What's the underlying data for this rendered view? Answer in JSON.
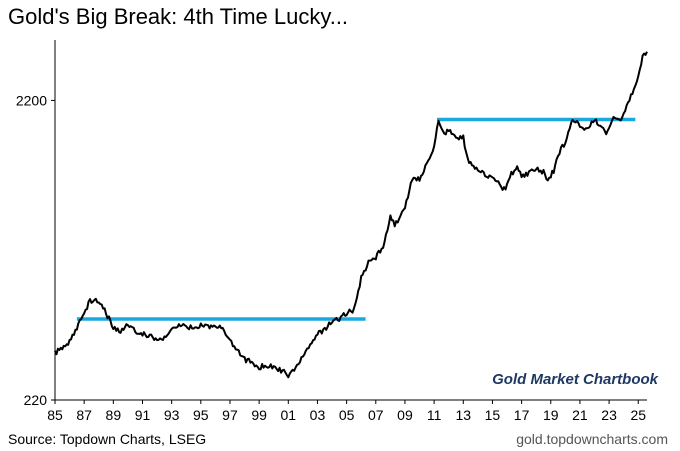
{
  "title": "Gold's Big Break: 4th Time Lucky...",
  "source": "Source: Topdown Charts, LSEG",
  "site": "gold.topdowncharts.com",
  "watermark": "Gold Market Chartbook",
  "colors": {
    "line": "#000000",
    "resistance": "#1aa8e0",
    "watermark": "#1f3864"
  },
  "chart_data": {
    "type": "line",
    "title": "Gold's Big Break: 4th Time Lucky...",
    "xlabel": "",
    "ylabel": "",
    "yscale": "log",
    "ylim": [
      220,
      3500
    ],
    "xlim": [
      1985,
      2025.6
    ],
    "x_tick_labels": [
      "85",
      "87",
      "89",
      "91",
      "93",
      "95",
      "97",
      "99",
      "01",
      "03",
      "05",
      "07",
      "09",
      "11",
      "13",
      "15",
      "17",
      "19",
      "21",
      "23",
      "25"
    ],
    "y_ticks": [
      220,
      2200
    ],
    "y_tick_labels": [
      "220",
      "2200"
    ],
    "grid": false,
    "legend": "none",
    "series": [
      {
        "x": [
          1985.0,
          1985.5,
          1986.0,
          1986.5,
          1987.0,
          1987.4,
          1987.8,
          1988.2,
          1988.6,
          1989.0,
          1989.5,
          1990.0,
          1990.5,
          1991.0,
          1991.5,
          1992.0,
          1992.5,
          1993.0,
          1993.5,
          1994.0,
          1994.5,
          1995.0,
          1995.5,
          1996.0,
          1996.5,
          1997.0,
          1997.5,
          1998.0,
          1998.5,
          1999.0,
          1999.4,
          1999.8,
          2000.2,
          2000.6,
          2001.0,
          2001.5,
          2002.0,
          2002.5,
          2003.0,
          2003.5,
          2004.0,
          2004.5,
          2005.0,
          2005.5,
          2006.0,
          2006.5,
          2007.0,
          2007.5,
          2008.0,
          2008.3,
          2008.7,
          2009.0,
          2009.5,
          2010.0,
          2010.5,
          2011.0,
          2011.3,
          2011.7,
          2012.0,
          2012.5,
          2013.0,
          2013.3,
          2013.7,
          2014.0,
          2014.5,
          2015.0,
          2015.5,
          2015.9,
          2016.3,
          2016.7,
          2017.0,
          2017.5,
          2018.0,
          2018.5,
          2018.8,
          2019.2,
          2019.6,
          2020.0,
          2020.3,
          2020.6,
          2021.0,
          2021.5,
          2022.0,
          2022.5,
          2022.8,
          2023.2,
          2023.6,
          2023.9,
          2024.2,
          2024.6,
          2025.0,
          2025.3,
          2025.6
        ],
        "values": [
          315,
          330,
          345,
          380,
          430,
          470,
          475,
          455,
          420,
          385,
          375,
          395,
          375,
          365,
          360,
          350,
          355,
          385,
          395,
          385,
          385,
          390,
          385,
          390,
          380,
          345,
          325,
          300,
          295,
          280,
          290,
          285,
          280,
          275,
          265,
          280,
          310,
          340,
          365,
          380,
          400,
          410,
          430,
          440,
          560,
          630,
          660,
          720,
          900,
          840,
          900,
          960,
          1200,
          1200,
          1350,
          1550,
          1880,
          1700,
          1750,
          1650,
          1650,
          1400,
          1320,
          1300,
          1250,
          1200,
          1150,
          1100,
          1250,
          1320,
          1220,
          1260,
          1300,
          1270,
          1200,
          1280,
          1480,
          1600,
          1800,
          1900,
          1800,
          1780,
          1900,
          1800,
          1700,
          1900,
          1920,
          1900,
          2100,
          2350,
          2650,
          3050,
          3200
        ]
      }
    ],
    "resistance_lines": [
      {
        "x": [
          1986.5,
          2006.3
        ],
        "y": 410
      },
      {
        "x": [
          2011.2,
          2024.8
        ],
        "y": 1900
      }
    ]
  }
}
